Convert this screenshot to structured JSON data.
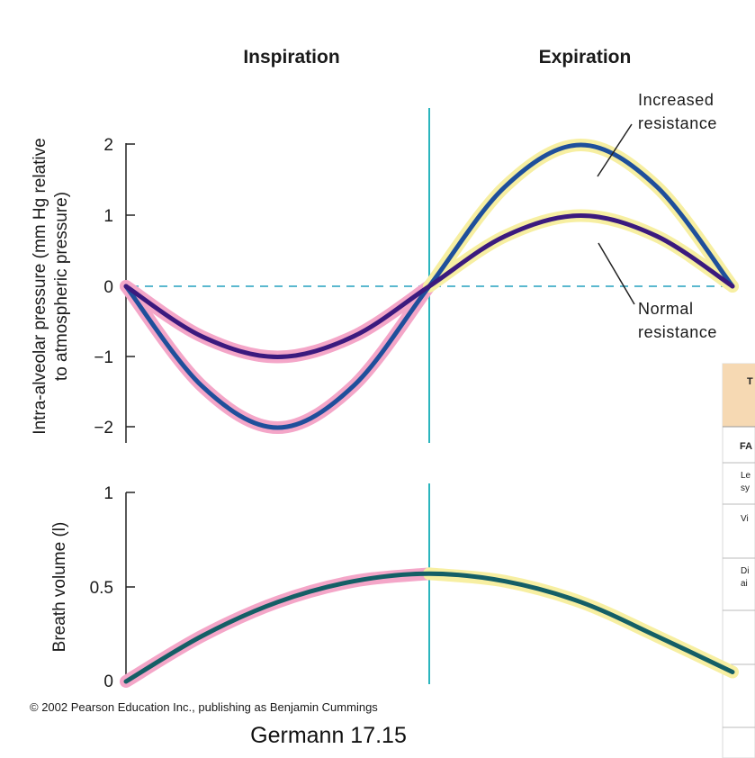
{
  "headers": {
    "left": "Inspiration",
    "right": "Expiration"
  },
  "annotations": {
    "increased_l1": "Increased",
    "increased_l2": "resistance",
    "normal_l1": "Normal",
    "normal_l2": "resistance"
  },
  "copyright": "© 2002 Pearson Education Inc., publishing as Benjamin Cummings",
  "caption": "Germann 17.15",
  "colors": {
    "increased": "#1f4f9b",
    "normal": "#3b1a7e",
    "volume": "#145f66",
    "inspiration_glow": "#f4a6c8",
    "expiration_glow": "#f7efa2",
    "divider": "#2bb5bd",
    "baseline": "#5ab8cf",
    "table_header": "#f6d9b3"
  },
  "side_table": {
    "header": "T",
    "rows": [
      "FA",
      "Le",
      "sy",
      "Vi",
      "Di",
      "ai"
    ]
  },
  "chart_data": [
    {
      "type": "line",
      "ylabel": [
        "Intra-alveolar pressure (mm Hg relative",
        "to atmospheric pressure)"
      ],
      "yticks": [
        "2",
        "1",
        "0",
        "−1",
        "−2"
      ],
      "ylim": [
        -2,
        2
      ],
      "xlim": [
        0,
        1
      ],
      "phase_divider_x": 0.5,
      "zero_line": "dashed",
      "series": [
        {
          "name": "Increased resistance",
          "x": [
            0,
            0.125,
            0.25,
            0.375,
            0.5,
            0.625,
            0.75,
            0.875,
            1.0
          ],
          "y": [
            0,
            -1.41,
            -2,
            -1.41,
            0,
            1.41,
            2,
            1.41,
            0
          ]
        },
        {
          "name": "Normal resistance",
          "x": [
            0,
            0.125,
            0.25,
            0.375,
            0.5,
            0.625,
            0.75,
            0.875,
            1.0
          ],
          "y": [
            0,
            -0.71,
            -1,
            -0.71,
            0,
            0.71,
            1,
            0.71,
            0
          ]
        }
      ]
    },
    {
      "type": "line",
      "ylabel": [
        "Breath volume (l)"
      ],
      "yticks": [
        "1",
        "0.5",
        "0"
      ],
      "ylim": [
        0,
        1
      ],
      "xlim": [
        0,
        1
      ],
      "phase_divider_x": 0.5,
      "series": [
        {
          "name": "",
          "x": [
            0,
            0.125,
            0.25,
            0.375,
            0.5,
            0.625,
            0.75,
            0.875,
            1.0
          ],
          "y": [
            0,
            0.24,
            0.42,
            0.53,
            0.57,
            0.53,
            0.42,
            0.24,
            0.05
          ]
        }
      ]
    }
  ]
}
